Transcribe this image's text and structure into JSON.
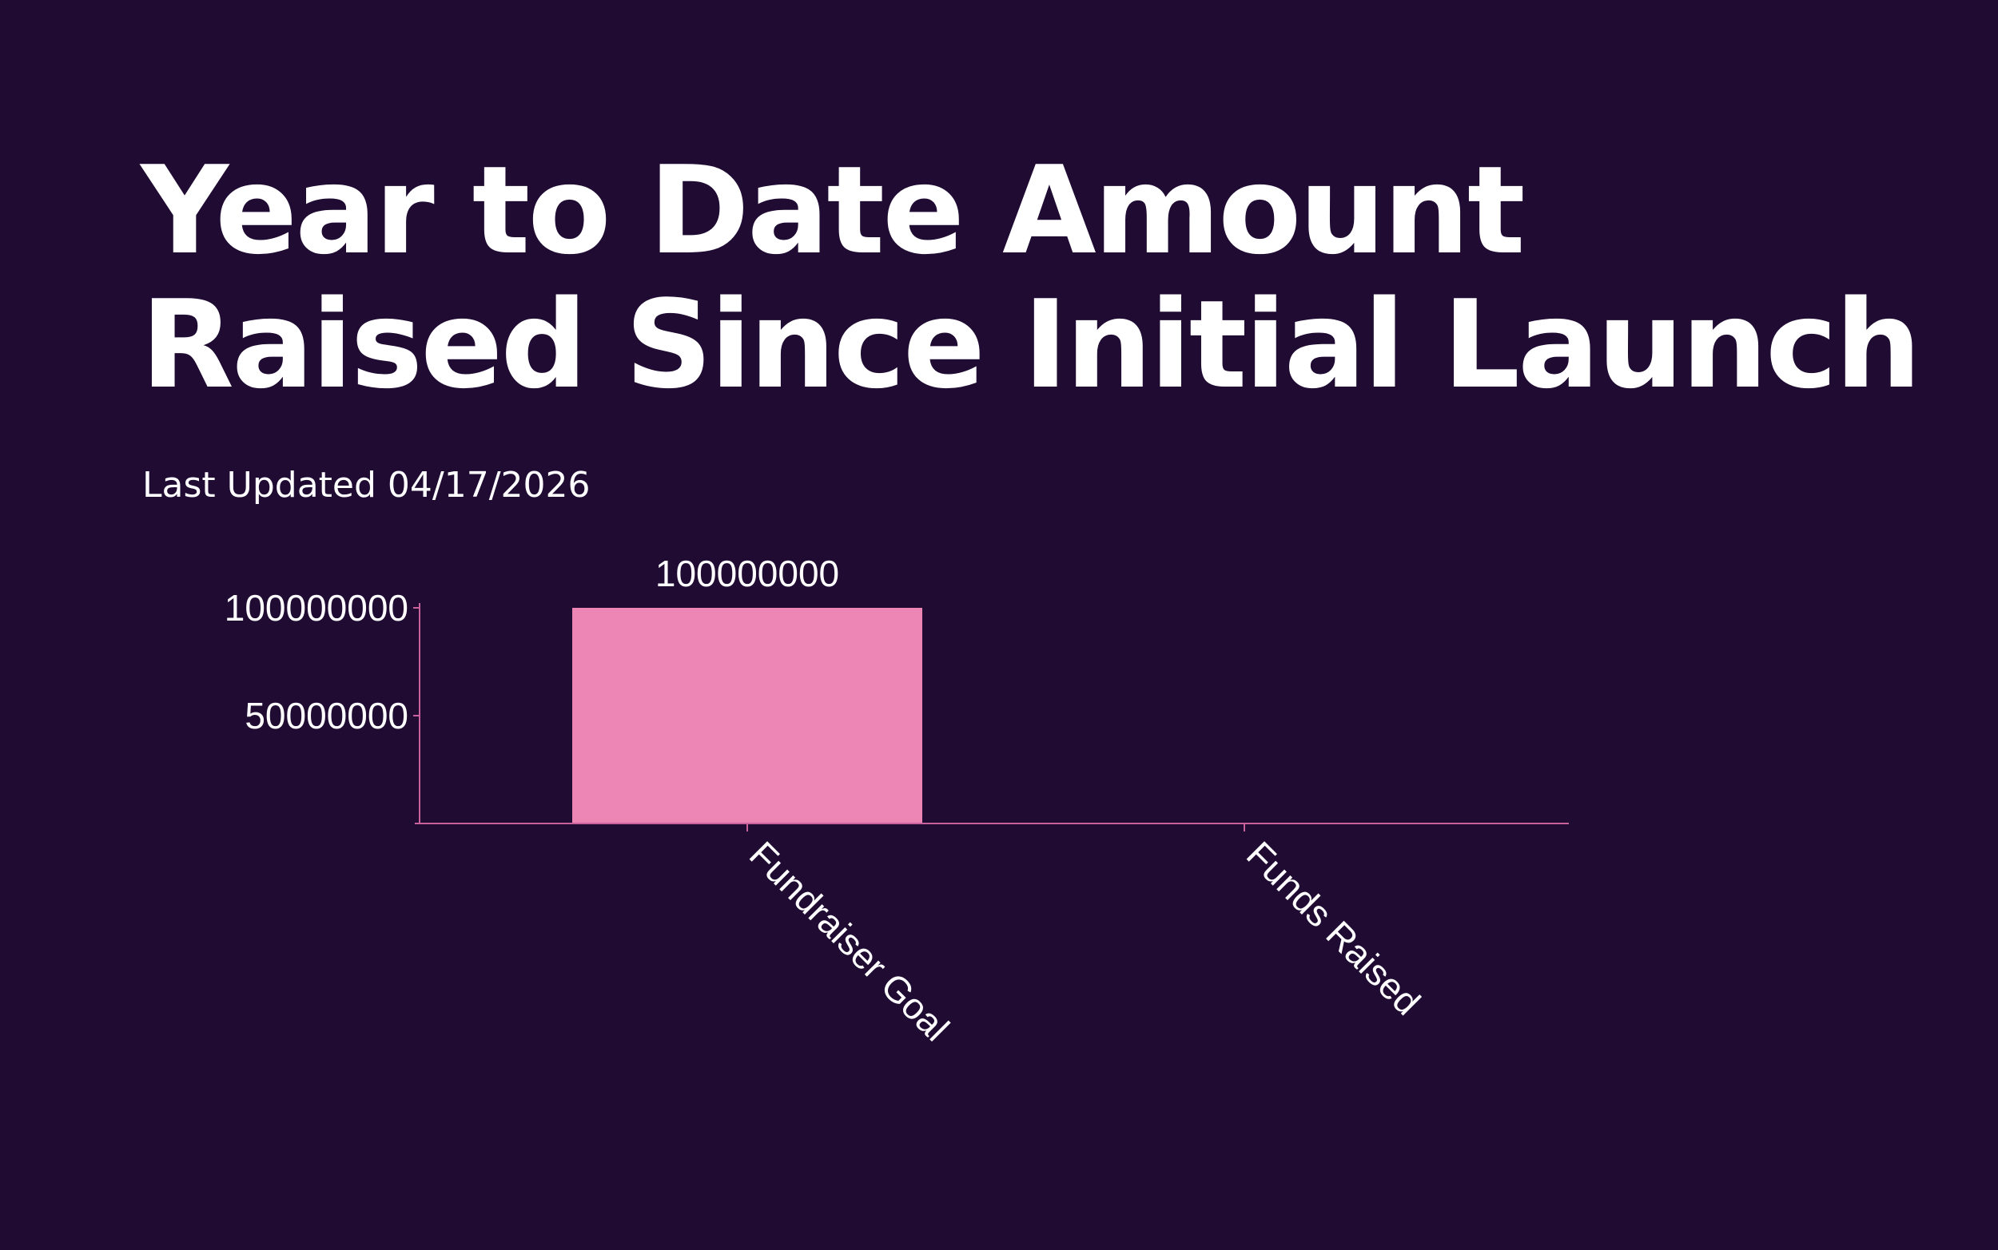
{
  "header": {
    "title_line1": "Year to Date Amount",
    "title_line2": "Raised Since Initial Launch",
    "subtitle": "Last Updated 04/17/2026"
  },
  "colors": {
    "background": "#200b33",
    "bar": "#ee86b5",
    "axis": "#c9619c",
    "text": "#ffffff"
  },
  "chart_data": {
    "type": "bar",
    "categories": [
      "Fundraiser Goal",
      "Funds Raised"
    ],
    "values": [
      100000000,
      0
    ],
    "data_labels": [
      "100000000",
      ""
    ],
    "y_ticks": [
      50000000,
      100000000
    ],
    "y_tick_labels": [
      "50000000",
      "100000000"
    ],
    "ylim": [
      0,
      100000000
    ],
    "grid": false,
    "legend": "none"
  }
}
